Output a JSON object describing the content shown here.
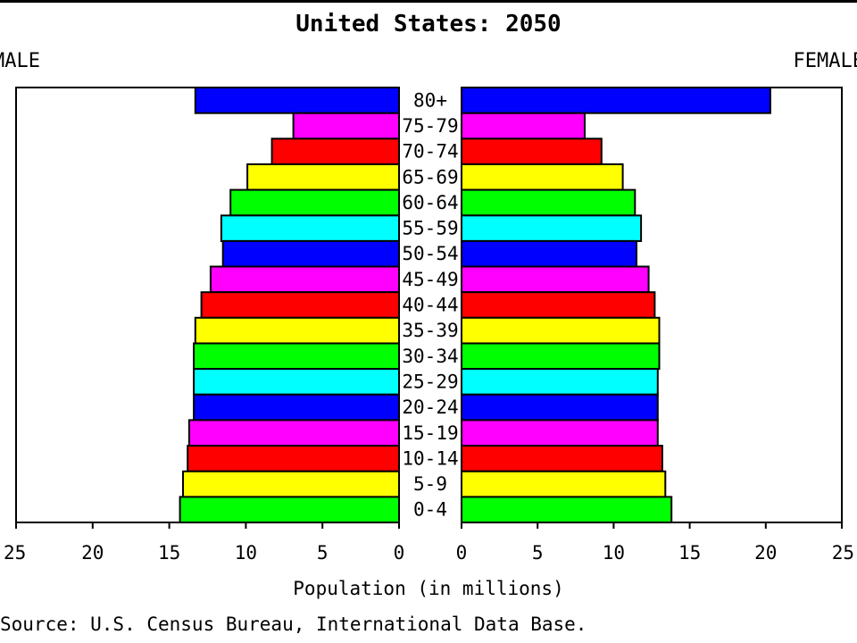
{
  "chart_data": {
    "type": "bar",
    "title": "United States: 2050",
    "left_label": "MALE",
    "right_label": "FEMALE",
    "xlabel": "Population (in millions)",
    "source": "Source: U.S. Census Bureau, International Data Base.",
    "xlim": [
      0,
      25
    ],
    "xticks": [
      0,
      5,
      10,
      15,
      20,
      25
    ],
    "categories": [
      "80+",
      "75-79",
      "70-74",
      "65-69",
      "60-64",
      "55-59",
      "50-54",
      "45-49",
      "40-44",
      "35-39",
      "30-34",
      "25-29",
      "20-24",
      "15-19",
      "10-14",
      "5-9",
      "0-4"
    ],
    "colors": [
      "#0000ff",
      "#ff00ff",
      "#ff0000",
      "#ffff00",
      "#00ff00",
      "#00ffff",
      "#0000ff",
      "#ff00ff",
      "#ff0000",
      "#ffff00",
      "#00ff00",
      "#00ffff",
      "#0000ff",
      "#ff00ff",
      "#ff0000",
      "#ffff00",
      "#00ff00"
    ],
    "series": [
      {
        "name": "MALE",
        "values": [
          13.3,
          6.9,
          8.3,
          9.9,
          11.0,
          11.6,
          11.5,
          12.3,
          12.9,
          13.3,
          13.4,
          13.4,
          13.4,
          13.7,
          13.8,
          14.1,
          14.3
        ]
      },
      {
        "name": "FEMALE",
        "values": [
          20.3,
          8.1,
          9.2,
          10.6,
          11.4,
          11.8,
          11.5,
          12.3,
          12.7,
          13.0,
          13.0,
          12.9,
          12.9,
          12.9,
          13.2,
          13.4,
          13.8
        ]
      }
    ]
  }
}
